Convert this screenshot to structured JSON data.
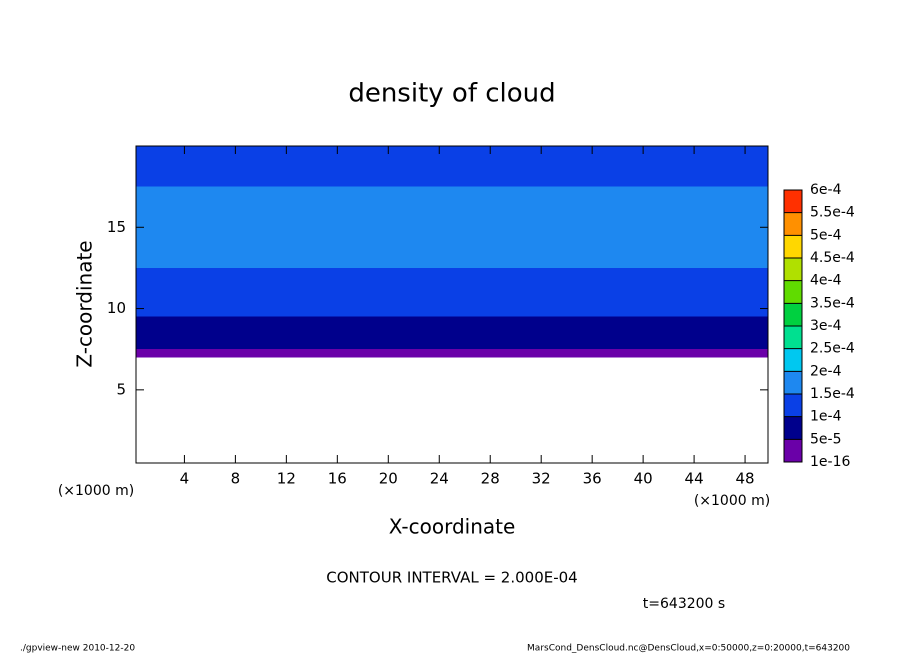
{
  "chart_data": {
    "type": "contour",
    "title": "density of cloud",
    "x_label": "X-coordinate",
    "y_label": "Z-coordinate",
    "x_unit": "(×1000 m)",
    "y_unit": "(×1000 m)",
    "xlim": [
      0.2,
      49.8
    ],
    "ylim": [
      0.5,
      20
    ],
    "xticks": [
      4,
      8,
      12,
      16,
      20,
      24,
      28,
      32,
      36,
      40,
      44,
      48
    ],
    "yticks": [
      5,
      10,
      15
    ],
    "z": [
      7.25,
      7.75,
      8.25,
      9,
      10,
      11,
      12,
      13,
      14,
      15,
      16,
      17,
      18,
      19,
      20
    ],
    "values": [
      3e-05,
      6e-05,
      8e-05,
      9e-05,
      0.000105,
      0.000115,
      0.00013,
      0.00015,
      0.000155,
      0.000155,
      0.000155,
      0.00015,
      0.00013,
      0.00012,
      0.00011
    ],
    "levels": [
      {
        "value": 1e-16,
        "label": "1e-16"
      },
      {
        "value": 5e-05,
        "label": "5e-5"
      },
      {
        "value": 0.0001,
        "label": "1e-4"
      },
      {
        "value": 0.00015,
        "label": "1.5e-4"
      },
      {
        "value": 0.0002,
        "label": "2e-4"
      },
      {
        "value": 0.00025,
        "label": "2.5e-4"
      },
      {
        "value": 0.0003,
        "label": "3e-4"
      },
      {
        "value": 0.00035,
        "label": "3.5e-4"
      },
      {
        "value": 0.0004,
        "label": "4e-4"
      },
      {
        "value": 0.00045,
        "label": "4.5e-4"
      },
      {
        "value": 0.0005,
        "label": "5e-4"
      },
      {
        "value": 0.00055,
        "label": "5.5e-4"
      },
      {
        "value": 0.0006,
        "label": "6e-4"
      }
    ],
    "colors": [
      "#6a00a8",
      "#00008c",
      "#0a40e6",
      "#1e88f0",
      "#00c8f0",
      "#00e090",
      "#00d040",
      "#60dc00",
      "#b0e000",
      "#ffd700",
      "#ff9000",
      "#ff3000"
    ],
    "contour_note": "CONTOUR INTERVAL = 2.000E-04",
    "time_note": "t=643200 s",
    "footer_left": "./gpview-new  2010-12-20",
    "footer_right": "MarsCond_DensCloud.nc@DensCloud,x=0:50000,z=0:20000,t=643200"
  }
}
